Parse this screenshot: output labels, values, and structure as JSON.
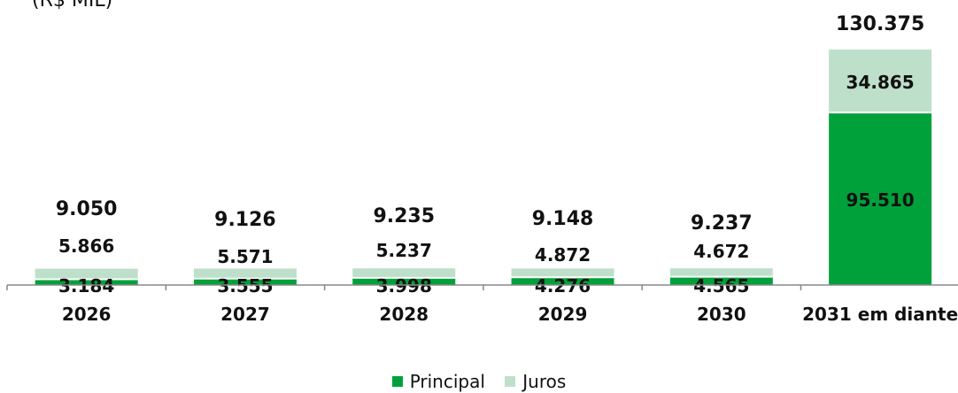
{
  "unit_label": "(R$ MIL)",
  "colors": {
    "principal": "#00A13A",
    "juros": "#BEDFCA",
    "axis": "#888888",
    "text": "#111111"
  },
  "chart_data": {
    "type": "bar",
    "stacked": true,
    "categories": [
      "2026",
      "2027",
      "2028",
      "2029",
      "2030",
      "2031 em diante"
    ],
    "series": [
      {
        "name": "Principal",
        "values": [
          3.184,
          3.555,
          3.998,
          4.276,
          4.565,
          95.51
        ],
        "labels": [
          "3.184",
          "3.555",
          "3.998",
          "4.276",
          "4.565",
          "95.510"
        ]
      },
      {
        "name": "Juros",
        "values": [
          5.866,
          5.571,
          5.237,
          4.872,
          4.672,
          34.865
        ],
        "labels": [
          "5.866",
          "5.571",
          "5.237",
          "4.872",
          "4.672",
          "34.865"
        ]
      }
    ],
    "totals": [
      9.05,
      9.126,
      9.235,
      9.148,
      9.237,
      130.375
    ],
    "total_labels": [
      "9.050",
      "9.126",
      "9.235",
      "9.148",
      "9.237",
      "130.375"
    ],
    "ylabel": "(R$ MIL)",
    "ylim": [
      0,
      130.375
    ],
    "grid": false,
    "legend": "bottom-center"
  },
  "legend": [
    {
      "label": "Principal",
      "color": "#00A13A"
    },
    {
      "label": "Juros",
      "color": "#BEDFCA"
    }
  ]
}
